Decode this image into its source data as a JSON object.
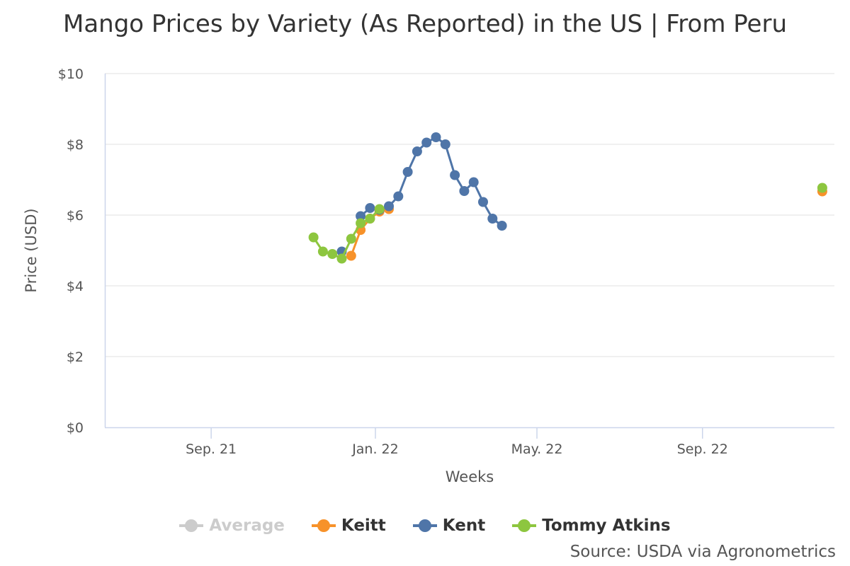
{
  "chart_data": {
    "type": "line",
    "title": "Mango Prices by Variety (As Reported) in the US | From Peru",
    "xlabel": "Weeks",
    "ylabel": "Price (USD)",
    "ylim": [
      0,
      10
    ],
    "xlim": [
      "2021-06-14",
      "2022-12-08"
    ],
    "y_ticks": [
      {
        "value": 0,
        "label": "$0"
      },
      {
        "value": 2,
        "label": "$2"
      },
      {
        "value": 4,
        "label": "$4"
      },
      {
        "value": 6,
        "label": "$6"
      },
      {
        "value": 8,
        "label": "$8"
      },
      {
        "value": 10,
        "label": "$10"
      }
    ],
    "x_ticks": [
      {
        "date": "2021-09-01",
        "label": "Sep. 21"
      },
      {
        "date": "2022-01-01",
        "label": "Jan. 22"
      },
      {
        "date": "2022-05-01",
        "label": "May. 22"
      },
      {
        "date": "2022-09-01",
        "label": "Sep. 22"
      }
    ],
    "grid": true,
    "legend_position": "bottom-center",
    "series": [
      {
        "name": "Average",
        "color": "#cccccc",
        "hidden": true,
        "points": []
      },
      {
        "name": "Keitt",
        "color": "#f7922a",
        "hidden": false,
        "points": [
          {
            "x": "2021-12-14",
            "y": 4.85
          },
          {
            "x": "2021-12-21",
            "y": 5.58
          },
          {
            "x": "2021-12-28",
            "y": 5.9
          },
          {
            "x": "2022-01-04",
            "y": 6.1
          },
          {
            "x": "2022-01-11",
            "y": 6.17
          },
          {
            "x": "2022-11-29",
            "y": 6.67
          }
        ]
      },
      {
        "name": "Kent",
        "color": "#4f75a8",
        "hidden": false,
        "points": [
          {
            "x": "2021-12-07",
            "y": 4.97
          },
          {
            "x": "2021-12-21",
            "y": 5.97
          },
          {
            "x": "2021-12-28",
            "y": 6.2
          },
          {
            "x": "2022-01-04",
            "y": 6.15
          },
          {
            "x": "2022-01-11",
            "y": 6.25
          },
          {
            "x": "2022-01-18",
            "y": 6.53
          },
          {
            "x": "2022-01-25",
            "y": 7.22
          },
          {
            "x": "2022-02-01",
            "y": 7.8
          },
          {
            "x": "2022-02-08",
            "y": 8.05
          },
          {
            "x": "2022-02-15",
            "y": 8.2
          },
          {
            "x": "2022-02-22",
            "y": 8.0
          },
          {
            "x": "2022-03-01",
            "y": 7.13
          },
          {
            "x": "2022-03-08",
            "y": 6.68
          },
          {
            "x": "2022-03-15",
            "y": 6.93
          },
          {
            "x": "2022-03-22",
            "y": 6.37
          },
          {
            "x": "2022-03-29",
            "y": 5.9
          },
          {
            "x": "2022-04-05",
            "y": 5.7
          }
        ]
      },
      {
        "name": "Tommy Atkins",
        "color": "#8dc63f",
        "hidden": false,
        "points": [
          {
            "x": "2021-11-16",
            "y": 5.37
          },
          {
            "x": "2021-11-23",
            "y": 4.97
          },
          {
            "x": "2021-11-30",
            "y": 4.9
          },
          {
            "x": "2021-12-07",
            "y": 4.77
          },
          {
            "x": "2021-12-14",
            "y": 5.33
          },
          {
            "x": "2021-12-21",
            "y": 5.77
          },
          {
            "x": "2021-12-28",
            "y": 5.9
          },
          {
            "x": "2022-01-04",
            "y": 6.17
          },
          {
            "x": "2022-11-29",
            "y": 6.77
          }
        ]
      }
    ],
    "source": "Source: USDA via Agronometrics"
  }
}
